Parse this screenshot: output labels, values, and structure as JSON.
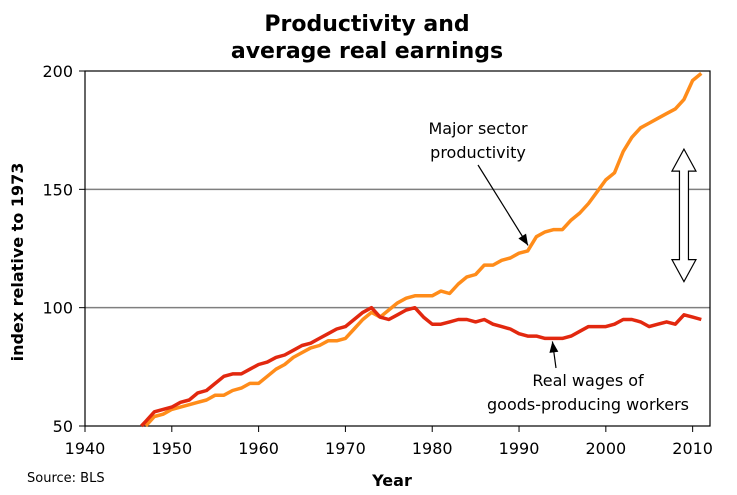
{
  "chart_data": {
    "type": "line",
    "title": [
      "Productivity and",
      "average real earnings"
    ],
    "xlabel": "Year",
    "ylabel": "index relative to 1973",
    "xlim": [
      1940,
      2012
    ],
    "ylim": [
      50,
      200
    ],
    "xticks": [
      "1940",
      "1950",
      "1960",
      "1970",
      "1980",
      "1990",
      "2000",
      "2010"
    ],
    "yticks": [
      "50",
      "100",
      "150",
      "200"
    ],
    "grid": "horizontal",
    "source": "Source: BLS",
    "annotations": [
      {
        "lines": [
          "Major sector",
          "productivity"
        ],
        "target": [
          1991.5,
          128
        ]
      },
      {
        "lines": [
          "Real wages of",
          "goods-producing workers"
        ],
        "target": [
          1993.5,
          87
        ]
      }
    ],
    "double_arrow": {
      "x": 2009,
      "y_top": 167,
      "y_bottom": 111
    },
    "series": [
      {
        "color": "#ff8c1a",
        "points": [
          [
            1947,
            50
          ],
          [
            1948,
            54
          ],
          [
            1949,
            55
          ],
          [
            1950,
            57
          ],
          [
            1951,
            58
          ],
          [
            1952,
            59
          ],
          [
            1953,
            60
          ],
          [
            1954,
            61
          ],
          [
            1955,
            63
          ],
          [
            1956,
            63
          ],
          [
            1957,
            65
          ],
          [
            1958,
            66
          ],
          [
            1959,
            68
          ],
          [
            1960,
            68
          ],
          [
            1961,
            71
          ],
          [
            1962,
            74
          ],
          [
            1963,
            76
          ],
          [
            1964,
            79
          ],
          [
            1965,
            81
          ],
          [
            1966,
            83
          ],
          [
            1967,
            84
          ],
          [
            1968,
            86
          ],
          [
            1969,
            86
          ],
          [
            1970,
            87
          ],
          [
            1971,
            91
          ],
          [
            1972,
            95
          ],
          [
            1973,
            98
          ],
          [
            1974,
            96
          ],
          [
            1975,
            99
          ],
          [
            1976,
            102
          ],
          [
            1977,
            104
          ],
          [
            1978,
            105
          ],
          [
            1979,
            105
          ],
          [
            1980,
            105
          ],
          [
            1981,
            107
          ],
          [
            1982,
            106
          ],
          [
            1983,
            110
          ],
          [
            1984,
            113
          ],
          [
            1985,
            114
          ],
          [
            1986,
            118
          ],
          [
            1987,
            118
          ],
          [
            1988,
            120
          ],
          [
            1989,
            121
          ],
          [
            1990,
            123
          ],
          [
            1991,
            124
          ],
          [
            1992,
            130
          ],
          [
            1993,
            132
          ],
          [
            1994,
            133
          ],
          [
            1995,
            133
          ],
          [
            1996,
            137
          ],
          [
            1997,
            140
          ],
          [
            1998,
            144
          ],
          [
            1999,
            149
          ],
          [
            2000,
            154
          ],
          [
            2001,
            157
          ],
          [
            2002,
            166
          ],
          [
            2003,
            172
          ],
          [
            2004,
            176
          ],
          [
            2005,
            178
          ],
          [
            2006,
            180
          ],
          [
            2007,
            182
          ],
          [
            2008,
            184
          ],
          [
            2009,
            188
          ],
          [
            2010,
            196
          ],
          [
            2011,
            199
          ]
        ]
      },
      {
        "color": "#e2280f",
        "points": [
          [
            1946.5,
            50
          ],
          [
            1947,
            52
          ],
          [
            1948,
            56
          ],
          [
            1949,
            57
          ],
          [
            1950,
            58
          ],
          [
            1951,
            60
          ],
          [
            1952,
            61
          ],
          [
            1953,
            64
          ],
          [
            1954,
            65
          ],
          [
            1955,
            68
          ],
          [
            1956,
            71
          ],
          [
            1957,
            72
          ],
          [
            1958,
            72
          ],
          [
            1959,
            74
          ],
          [
            1960,
            76
          ],
          [
            1961,
            77
          ],
          [
            1962,
            79
          ],
          [
            1963,
            80
          ],
          [
            1964,
            82
          ],
          [
            1965,
            84
          ],
          [
            1966,
            85
          ],
          [
            1967,
            87
          ],
          [
            1968,
            89
          ],
          [
            1969,
            91
          ],
          [
            1970,
            92
          ],
          [
            1971,
            95
          ],
          [
            1972,
            98
          ],
          [
            1973,
            100
          ],
          [
            1974,
            96
          ],
          [
            1975,
            95
          ],
          [
            1976,
            97
          ],
          [
            1977,
            99
          ],
          [
            1978,
            100
          ],
          [
            1979,
            96
          ],
          [
            1980,
            93
          ],
          [
            1981,
            93
          ],
          [
            1982,
            94
          ],
          [
            1983,
            95
          ],
          [
            1984,
            95
          ],
          [
            1985,
            94
          ],
          [
            1986,
            95
          ],
          [
            1987,
            93
          ],
          [
            1988,
            92
          ],
          [
            1989,
            91
          ],
          [
            1990,
            89
          ],
          [
            1991,
            88
          ],
          [
            1992,
            88
          ],
          [
            1993,
            87
          ],
          [
            1994,
            87
          ],
          [
            1995,
            87
          ],
          [
            1996,
            88
          ],
          [
            1997,
            90
          ],
          [
            1998,
            92
          ],
          [
            1999,
            92
          ],
          [
            2000,
            92
          ],
          [
            2001,
            93
          ],
          [
            2002,
            95
          ],
          [
            2003,
            95
          ],
          [
            2004,
            94
          ],
          [
            2005,
            92
          ],
          [
            2006,
            93
          ],
          [
            2007,
            94
          ],
          [
            2008,
            93
          ],
          [
            2009,
            97
          ],
          [
            2010,
            96
          ],
          [
            2011,
            95
          ]
        ]
      }
    ]
  }
}
